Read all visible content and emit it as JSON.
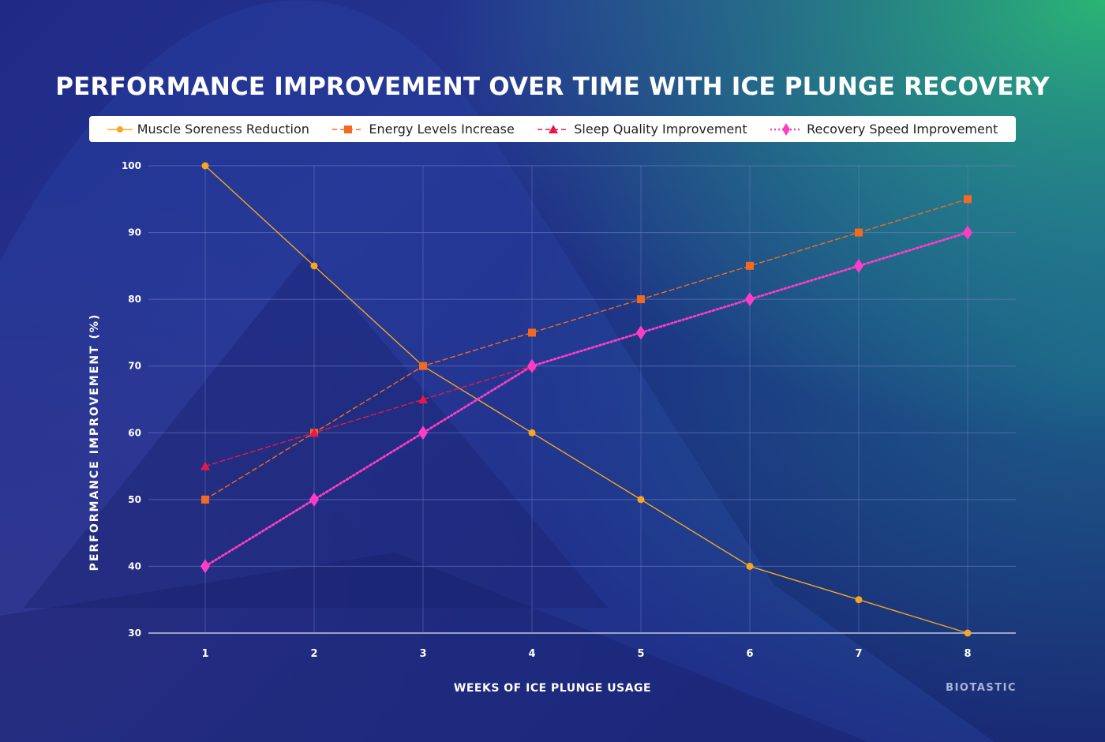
{
  "title": "PERFORMANCE IMPROVEMENT OVER TIME WITH ICE PLUNGE RECOVERY",
  "brand": "BIOTASTIC",
  "colors": {
    "muscle": "#f5a623",
    "energy": "#f26a21",
    "sleep": "#e8174b",
    "recovery": "#ff3cc7",
    "grid": "#6f7fc4"
  },
  "chart_data": {
    "type": "line",
    "title": "PERFORMANCE IMPROVEMENT OVER TIME WITH ICE PLUNGE RECOVERY",
    "xlabel": "WEEKS OF ICE PLUNGE USAGE",
    "ylabel": "PERFORMANCE IMPROVEMENT (%)",
    "x": [
      1,
      2,
      3,
      4,
      5,
      6,
      7,
      8
    ],
    "ylim": [
      30,
      100
    ],
    "yticks": [
      30,
      40,
      50,
      60,
      70,
      80,
      90,
      100
    ],
    "grid": true,
    "legend_position": "top",
    "series": [
      {
        "name": "Muscle Soreness Reduction",
        "color": "#f5a623",
        "style": "solid",
        "marker": "circle",
        "values": [
          100,
          85,
          70,
          60,
          50,
          40,
          35,
          30
        ]
      },
      {
        "name": "Energy Levels Increase",
        "color": "#f26a21",
        "style": "dashed",
        "marker": "square",
        "values": [
          50,
          60,
          70,
          75,
          80,
          85,
          90,
          95
        ]
      },
      {
        "name": "Sleep Quality Improvement",
        "color": "#e8174b",
        "style": "dashed",
        "marker": "triangle",
        "values": [
          55,
          60,
          65,
          70,
          null,
          null,
          null,
          null
        ]
      },
      {
        "name": "Recovery Speed Improvement",
        "color": "#ff3cc7",
        "style": "dotted",
        "marker": "diamond",
        "values": [
          40,
          50,
          60,
          70,
          75,
          80,
          85,
          90
        ]
      }
    ]
  }
}
